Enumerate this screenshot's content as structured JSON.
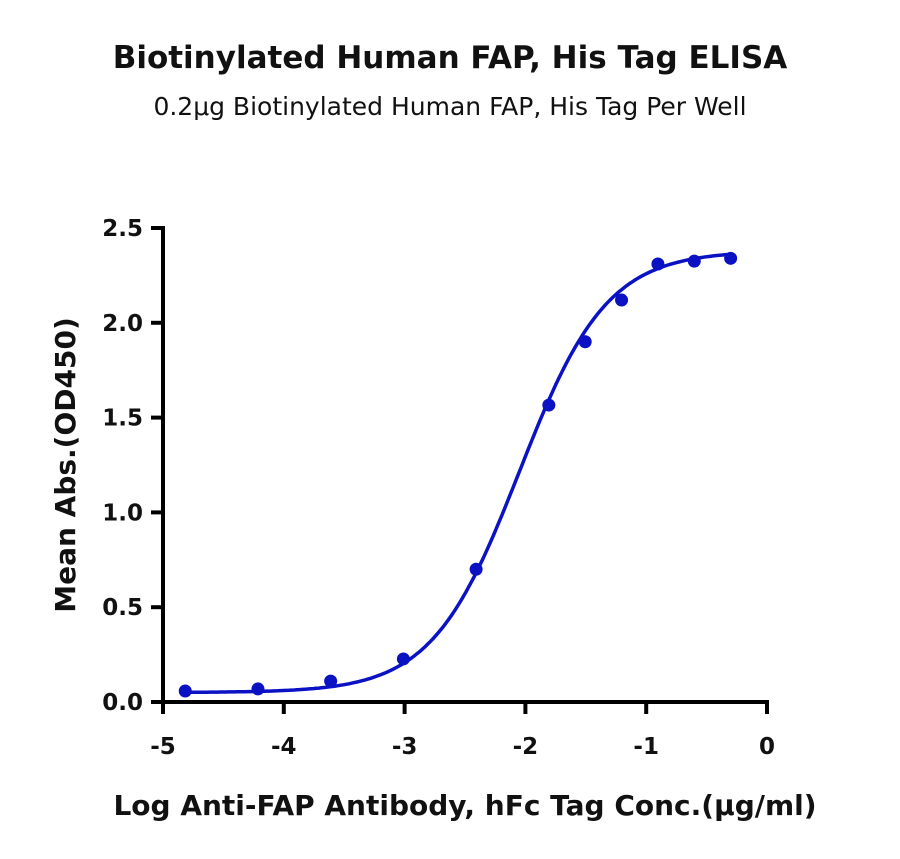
{
  "chart_data": {
    "type": "scatter",
    "title": "Biotinylated Human FAP, His Tag ELISA",
    "subtitle": "0.2μg Biotinylated Human FAP, His Tag Per Well",
    "xlabel": "Log Anti-FAP Antibody, hFc Tag Conc.(μg/ml)",
    "ylabel": "Mean Abs.(OD450)",
    "xlim": [
      -5,
      0
    ],
    "ylim": [
      0,
      2.5
    ],
    "xticks": [
      "-5",
      "-4",
      "-3",
      "-2",
      "-1",
      "0"
    ],
    "yticks": [
      "0.0",
      "0.5",
      "1.0",
      "1.5",
      "2.0",
      "2.5"
    ],
    "grid": false,
    "color": "#0a12c4",
    "fit_curve": "sigmoidal (4PL)",
    "x": [
      -4.816,
      -4.214,
      -3.612,
      -3.01,
      -2.408,
      -1.806,
      -1.505,
      -1.204,
      -0.903,
      -0.602,
      -0.301
    ],
    "y": [
      0.058,
      0.069,
      0.11,
      0.227,
      0.7,
      1.566,
      1.9,
      2.12,
      2.31,
      2.325,
      2.34
    ]
  }
}
